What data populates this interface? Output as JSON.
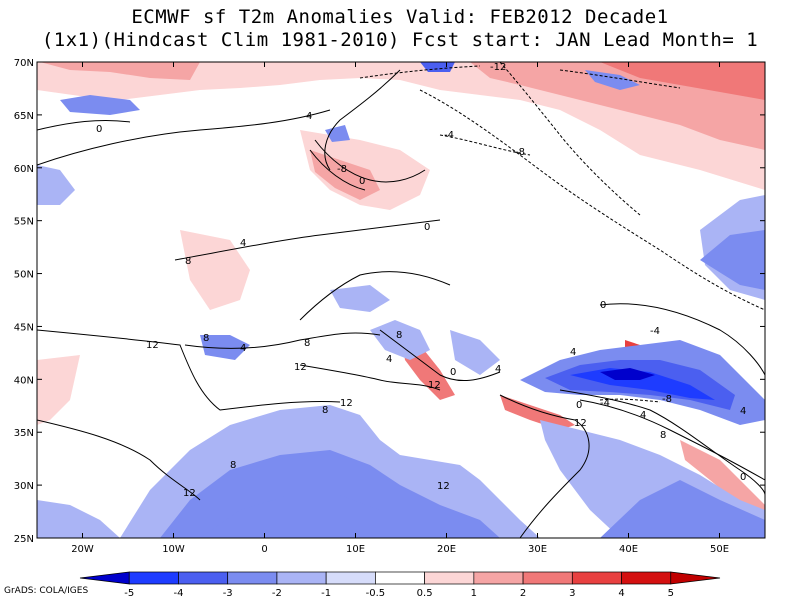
{
  "title": {
    "line1": "ECMWF sf T2m Anomalies Valid: FEB2012 Decade1",
    "line2": "(1x1)(Hindcast Clim 1981-2010) Fcst start: JAN  Lead Month= 1"
  },
  "credit": "GrADS: COLA/IGES",
  "map": {
    "lon_range": [
      -25,
      55
    ],
    "lat_range": [
      25,
      70
    ],
    "lon_ticks": [
      "20W",
      "10W",
      "0",
      "10E",
      "20E",
      "30E",
      "40E",
      "50E"
    ],
    "lon_values": [
      -20,
      -10,
      0,
      10,
      20,
      30,
      40,
      50
    ],
    "lat_ticks": [
      "25N",
      "30N",
      "35N",
      "40N",
      "45N",
      "50N",
      "55N",
      "60N",
      "65N",
      "70N"
    ],
    "lat_values": [
      25,
      30,
      35,
      40,
      45,
      50,
      55,
      60,
      65,
      70
    ],
    "contour_labels": [
      "-12",
      "-8",
      "-4",
      "0",
      "4",
      "8",
      "12"
    ]
  },
  "colorbar": {
    "labels": [
      "-5",
      "-4",
      "-3",
      "-2",
      "-1",
      "-0.5",
      "0.5",
      "1",
      "2",
      "3",
      "4",
      "5"
    ],
    "colors": [
      "#0000cc",
      "#1e3cff",
      "#4b5ff0",
      "#7b8cf0",
      "#aab4f5",
      "#d6dcfa",
      "#ffffff",
      "#fcd6d6",
      "#f5a5a5",
      "#f07878",
      "#e84040",
      "#d41010",
      "#c00000"
    ]
  }
}
